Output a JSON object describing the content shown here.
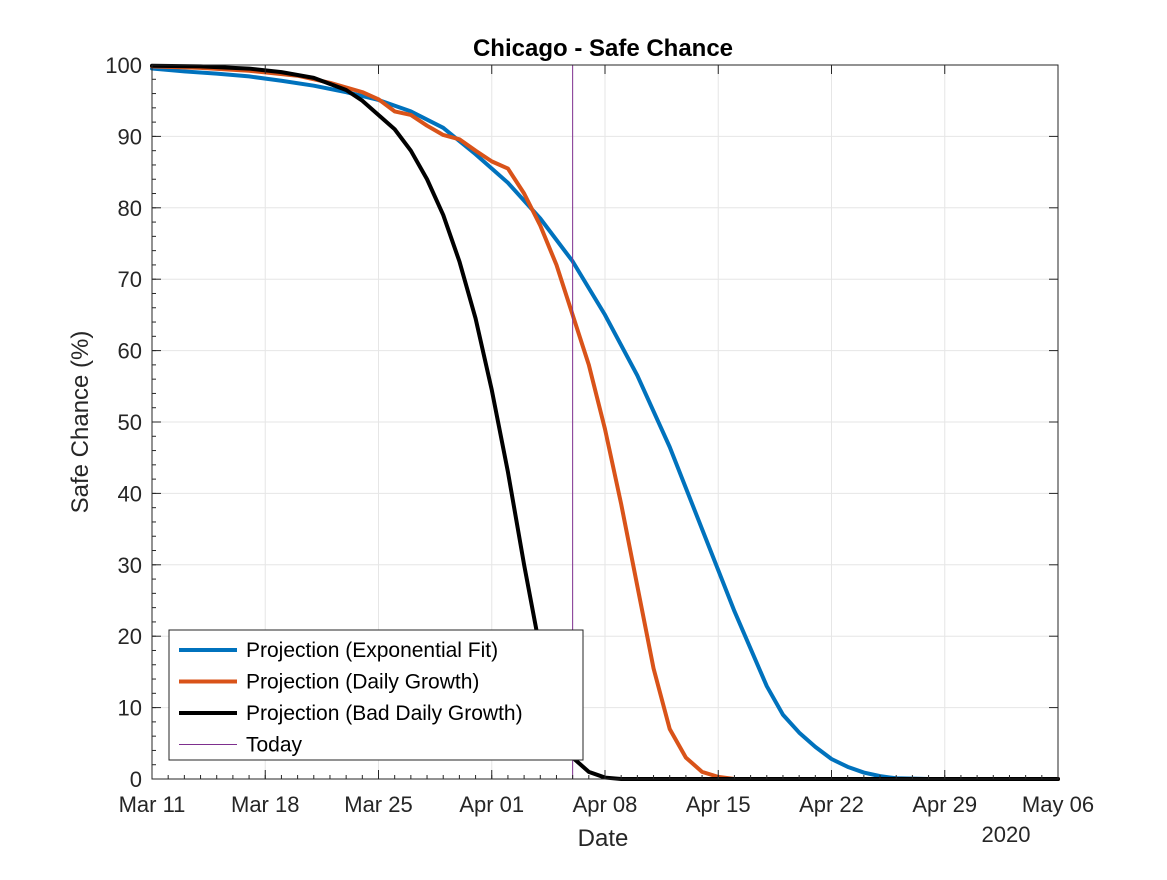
{
  "chart_data": {
    "type": "line",
    "title": "Chicago - Safe Chance",
    "xlabel": "Date",
    "ylabel": "Safe Chance (%)",
    "x_secondary_label": "2020",
    "x_unit": "date",
    "xlim": [
      "2020-03-11",
      "2020-05-06"
    ],
    "ylim": [
      0,
      100
    ],
    "grid": true,
    "legend_position": "bottom-left",
    "x_tick_labels": [
      "Mar 11",
      "Mar 18",
      "Mar 25",
      "Apr 01",
      "Apr 08",
      "Apr 15",
      "Apr 22",
      "Apr 29",
      "May 06"
    ],
    "x_ticks": [
      "2020-03-11",
      "2020-03-18",
      "2020-03-25",
      "2020-04-01",
      "2020-04-08",
      "2020-04-15",
      "2020-04-22",
      "2020-04-29",
      "2020-05-06"
    ],
    "y_ticks": [
      0,
      10,
      20,
      30,
      40,
      50,
      60,
      70,
      80,
      90,
      100
    ],
    "vertical_line": {
      "name": "Today",
      "x": "2020-04-06",
      "color": "#7E2F8E"
    },
    "series": [
      {
        "name": "Projection (Exponential Fit)",
        "color": "#0072BD",
        "x": [
          "2020-03-11",
          "2020-03-13",
          "2020-03-15",
          "2020-03-17",
          "2020-03-19",
          "2020-03-21",
          "2020-03-23",
          "2020-03-25",
          "2020-03-27",
          "2020-03-29",
          "2020-03-31",
          "2020-04-02",
          "2020-04-04",
          "2020-04-06",
          "2020-04-08",
          "2020-04-10",
          "2020-04-12",
          "2020-04-14",
          "2020-04-16",
          "2020-04-18",
          "2020-04-19",
          "2020-04-20",
          "2020-04-21",
          "2020-04-22",
          "2020-04-23",
          "2020-04-24",
          "2020-04-25",
          "2020-04-26",
          "2020-04-28",
          "2020-05-01",
          "2020-05-06"
        ],
        "y": [
          99.5,
          99.1,
          98.8,
          98.4,
          97.8,
          97.1,
          96.2,
          95.1,
          93.5,
          91.2,
          87.5,
          83.5,
          78.5,
          72.5,
          65.0,
          56.5,
          46.5,
          35.0,
          23.5,
          13.0,
          9.0,
          6.5,
          4.5,
          2.8,
          1.7,
          0.9,
          0.4,
          0.1,
          0,
          0,
          0
        ]
      },
      {
        "name": "Projection (Daily Growth)",
        "color": "#D95319",
        "x": [
          "2020-03-11",
          "2020-03-14",
          "2020-03-17",
          "2020-03-20",
          "2020-03-22",
          "2020-03-24",
          "2020-03-25",
          "2020-03-26",
          "2020-03-27",
          "2020-03-28",
          "2020-03-29",
          "2020-03-30",
          "2020-03-31",
          "2020-04-01",
          "2020-04-02",
          "2020-04-03",
          "2020-04-04",
          "2020-04-05",
          "2020-04-06",
          "2020-04-07",
          "2020-04-08",
          "2020-04-09",
          "2020-04-10",
          "2020-04-11",
          "2020-04-12",
          "2020-04-13",
          "2020-04-14",
          "2020-04-15",
          "2020-04-16",
          "2020-04-18",
          "2020-05-06"
        ],
        "y": [
          99.8,
          99.6,
          99.2,
          98.5,
          97.5,
          96.2,
          95.2,
          93.5,
          93.0,
          91.5,
          90.2,
          89.6,
          88.0,
          86.5,
          85.5,
          82.0,
          77.5,
          72.0,
          65.0,
          58.0,
          49.0,
          38.5,
          27.0,
          15.5,
          7.0,
          3.0,
          1.0,
          0.3,
          0,
          0,
          0
        ]
      },
      {
        "name": "Projection (Bad Daily Growth)",
        "color": "#000000",
        "x": [
          "2020-03-11",
          "2020-03-14",
          "2020-03-17",
          "2020-03-19",
          "2020-03-21",
          "2020-03-23",
          "2020-03-24",
          "2020-03-25",
          "2020-03-26",
          "2020-03-27",
          "2020-03-28",
          "2020-03-29",
          "2020-03-30",
          "2020-03-31",
          "2020-04-01",
          "2020-04-02",
          "2020-04-03",
          "2020-04-04",
          "2020-04-05",
          "2020-04-06",
          "2020-04-07",
          "2020-04-08",
          "2020-04-09",
          "2020-04-10",
          "2020-05-06"
        ],
        "y": [
          99.9,
          99.8,
          99.5,
          99.0,
          98.2,
          96.5,
          95.0,
          93.0,
          91.0,
          88.0,
          84.0,
          79.0,
          72.5,
          64.5,
          54.5,
          43.0,
          30.0,
          18.0,
          9.0,
          3.0,
          1.0,
          0.2,
          0,
          0,
          0
        ]
      }
    ]
  }
}
